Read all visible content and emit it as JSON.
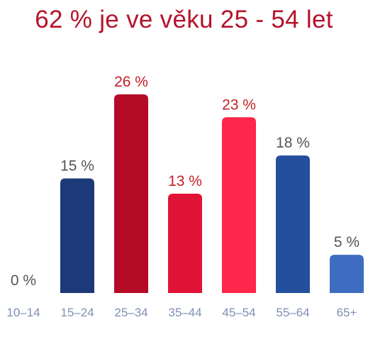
{
  "chart_data": {
    "type": "bar",
    "title": "62 % je ve věku 25 - 54 let",
    "title_color": "#b5132b",
    "categories": [
      "10–14",
      "15–24",
      "25–34",
      "35–44",
      "45–54",
      "55–64",
      "65+"
    ],
    "values": [
      0,
      15,
      26,
      13,
      23,
      18,
      5
    ],
    "value_labels": [
      "0 %",
      "15 %",
      "26 %",
      "13 %",
      "23 %",
      "18 %",
      "5 %"
    ],
    "bar_colors": [
      "#1d3a78",
      "#1d3a78",
      "#b50b27",
      "#e01235",
      "#fe264a",
      "#244f9c",
      "#3e6cc0"
    ],
    "value_label_colors": [
      "#555555",
      "#555555",
      "#c42027",
      "#c42027",
      "#c42027",
      "#555555",
      "#555555"
    ],
    "tick_label_color": "#7f90b2",
    "xlabel": "",
    "ylabel": "",
    "ylim": [
      0,
      26
    ],
    "grid": false,
    "legend": "none"
  }
}
